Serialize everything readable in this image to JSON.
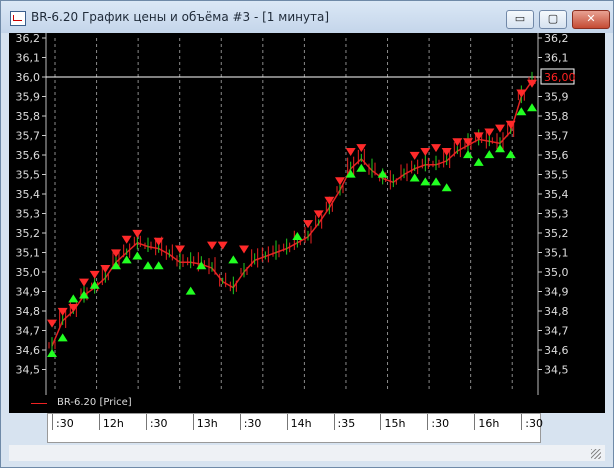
{
  "window": {
    "title": "BR-6.20 График цены и объёма #3 - [1 минута]",
    "buttons": {
      "minimize": "▭",
      "maximize": "▢",
      "close": "✕"
    }
  },
  "legend": {
    "label": "BR-6.20 [Price]",
    "color": "#e22222"
  },
  "time_axis": {
    "labels": [
      ":30",
      "12h",
      ":30",
      "13h",
      ":30",
      "14h",
      ":35",
      "15h",
      ":30",
      "16h",
      ":30"
    ]
  },
  "chart_data": {
    "type": "line",
    "series": [
      {
        "name": "BR-6.20 [Price]",
        "color": "#e22222"
      }
    ],
    "ylim": [
      34.4,
      36.2
    ],
    "y_ticks": [
      "34,5",
      "34,6",
      "34,7",
      "34,8",
      "34,9",
      "35,0",
      "35,1",
      "35,2",
      "35,3",
      "35,4",
      "35,5",
      "35,6",
      "35,7",
      "35,8",
      "35,9",
      "36,0",
      "36,1",
      "36,2"
    ],
    "reference_line": {
      "value": 36.0,
      "label": "36,00"
    },
    "x_tick_labels": [
      ":30",
      "12h",
      ":30",
      "13h",
      ":30",
      "14h",
      ":35",
      "15h",
      ":30",
      "16h",
      ":30"
    ],
    "price_path": [
      [
        0,
        34.62
      ],
      [
        1,
        34.75
      ],
      [
        2,
        34.8
      ],
      [
        3,
        34.88
      ],
      [
        4,
        34.92
      ],
      [
        5,
        34.97
      ],
      [
        6,
        35.05
      ],
      [
        7,
        35.1
      ],
      [
        8,
        35.15
      ],
      [
        9,
        35.13
      ],
      [
        10,
        35.12
      ],
      [
        11,
        35.09
      ],
      [
        12,
        35.05
      ],
      [
        13,
        35.05
      ],
      [
        14,
        35.04
      ],
      [
        15,
        35.02
      ],
      [
        16,
        34.95
      ],
      [
        17,
        34.92
      ],
      [
        18,
        35.0
      ],
      [
        19,
        35.06
      ],
      [
        20,
        35.08
      ],
      [
        21,
        35.1
      ],
      [
        22,
        35.12
      ],
      [
        23,
        35.15
      ],
      [
        24,
        35.18
      ],
      [
        25,
        35.25
      ],
      [
        26,
        35.33
      ],
      [
        27,
        35.42
      ],
      [
        28,
        35.53
      ],
      [
        29,
        35.58
      ],
      [
        30,
        35.52
      ],
      [
        31,
        35.48
      ],
      [
        32,
        35.46
      ],
      [
        33,
        35.5
      ],
      [
        34,
        35.53
      ],
      [
        35,
        35.55
      ],
      [
        36,
        35.55
      ],
      [
        37,
        35.57
      ],
      [
        38,
        35.62
      ],
      [
        39,
        35.65
      ],
      [
        40,
        35.68
      ],
      [
        41,
        35.67
      ],
      [
        42,
        35.66
      ],
      [
        43,
        35.72
      ],
      [
        44,
        35.9
      ],
      [
        45,
        35.98
      ]
    ],
    "sell_markers": [
      [
        0,
        34.72
      ],
      [
        1,
        34.78
      ],
      [
        2,
        34.8
      ],
      [
        3,
        34.93
      ],
      [
        4,
        34.97
      ],
      [
        5,
        35.0
      ],
      [
        6,
        35.08
      ],
      [
        7,
        35.15
      ],
      [
        8,
        35.18
      ],
      [
        10,
        35.14
      ],
      [
        12,
        35.1
      ],
      [
        15,
        35.12
      ],
      [
        16,
        35.12
      ],
      [
        18,
        35.1
      ],
      [
        24,
        35.23
      ],
      [
        25,
        35.28
      ],
      [
        26,
        35.35
      ],
      [
        27,
        35.45
      ],
      [
        28,
        35.6
      ],
      [
        29,
        35.62
      ],
      [
        34,
        35.58
      ],
      [
        35,
        35.6
      ],
      [
        36,
        35.62
      ],
      [
        37,
        35.6
      ],
      [
        38,
        35.65
      ],
      [
        39,
        35.65
      ],
      [
        40,
        35.68
      ],
      [
        41,
        35.7
      ],
      [
        42,
        35.72
      ],
      [
        43,
        35.74
      ],
      [
        44,
        35.9
      ],
      [
        45,
        35.95
      ]
    ],
    "buy_markers": [
      [
        0,
        34.6
      ],
      [
        1,
        34.68
      ],
      [
        2,
        34.88
      ],
      [
        3,
        34.9
      ],
      [
        4,
        34.95
      ],
      [
        6,
        35.05
      ],
      [
        7,
        35.08
      ],
      [
        8,
        35.1
      ],
      [
        9,
        35.05
      ],
      [
        10,
        35.05
      ],
      [
        13,
        34.92
      ],
      [
        14,
        35.05
      ],
      [
        17,
        35.08
      ],
      [
        23,
        35.2
      ],
      [
        28,
        35.52
      ],
      [
        29,
        35.55
      ],
      [
        31,
        35.52
      ],
      [
        34,
        35.5
      ],
      [
        35,
        35.48
      ],
      [
        36,
        35.48
      ],
      [
        37,
        35.45
      ],
      [
        39,
        35.62
      ],
      [
        40,
        35.58
      ],
      [
        41,
        35.62
      ],
      [
        42,
        35.65
      ],
      [
        43,
        35.62
      ],
      [
        44,
        35.84
      ],
      [
        45,
        35.86
      ]
    ]
  }
}
